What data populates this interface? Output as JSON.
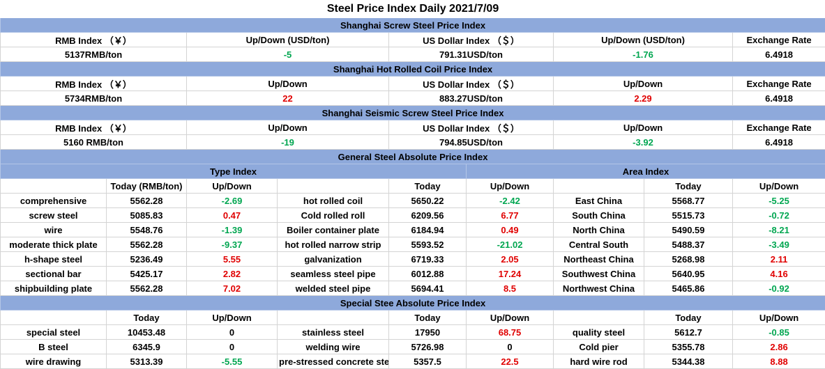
{
  "title": "Steel Price Index Daily  2021/7/09",
  "sections": [
    {
      "title": "Shanghai Screw Steel Price Index",
      "headers": [
        "RMB Index （￥）",
        "Up/Down (USD/ton)",
        "US Dollar Index （＄）",
        "Up/Down (USD/ton)",
        "Exchange Rate"
      ],
      "values": [
        "5137RMB/ton",
        "-5",
        "791.31USD/ton",
        "-1.76",
        "6.4918"
      ]
    },
    {
      "title": "Shanghai Hot Rolled Coil Price Index",
      "headers": [
        "RMB Index （￥）",
        "Up/Down",
        "US Dollar Index （＄）",
        "Up/Down",
        "Exchange Rate"
      ],
      "values": [
        "5734RMB/ton",
        "22",
        "883.27USD/ton",
        "2.29",
        "6.4918"
      ]
    },
    {
      "title": "Shanghai Seismic Screw Steel Price Index",
      "headers": [
        "RMB Index （￥）",
        "Up/Down",
        "US Dollar Index （＄）",
        "Up/Down",
        "Exchange Rate"
      ],
      "values": [
        "5160 RMB/ton",
        "-19",
        "794.85USD/ton",
        "-3.92",
        "6.4918"
      ]
    }
  ],
  "general": {
    "title": "General Steel Absolute Price Index",
    "type_index": "Type Index",
    "area_index": "Area Index",
    "headers": [
      null,
      "Today (RMB/ton)",
      "Up/Down",
      null,
      "Today",
      "Up/Down",
      null,
      "Today",
      "Up/Down"
    ],
    "rows": [
      [
        "comprehensive",
        "5562.28",
        "-2.69",
        "hot rolled coil",
        "5650.22",
        "-2.42",
        "East China",
        "5568.77",
        "-5.25"
      ],
      [
        "screw steel",
        "5085.83",
        "0.47",
        "Cold rolled roll",
        "6209.56",
        "6.77",
        "South China",
        "5515.73",
        "-0.72"
      ],
      [
        "wire",
        "5548.76",
        "-1.39",
        "Boiler container plate",
        "6184.94",
        "0.49",
        "North China",
        "5490.59",
        "-8.21"
      ],
      [
        "moderate thick plate",
        "5562.28",
        "-9.37",
        "hot rolled narrow strip",
        "5593.52",
        "-21.02",
        "Central South",
        "5488.37",
        "-3.49"
      ],
      [
        "h-shape steel",
        "5236.49",
        "5.55",
        "galvanization",
        "6719.33",
        "2.05",
        "Northeast China",
        "5268.98",
        "2.11"
      ],
      [
        "sectional bar",
        "5425.17",
        "2.82",
        "seamless steel pipe",
        "6012.88",
        "17.24",
        "Southwest China",
        "5640.95",
        "4.16"
      ],
      [
        "shipbuilding plate",
        "5562.28",
        "7.02",
        "welded steel pipe",
        "5694.41",
        "8.5",
        "Northwest China",
        "5465.86",
        "-0.92"
      ]
    ]
  },
  "special": {
    "title": "Special Stee Absolute Price Index",
    "headers": [
      null,
      "Today",
      "Up/Down",
      null,
      "Today",
      "Up/Down",
      null,
      "Today",
      "Up/Down"
    ],
    "rows": [
      [
        "special steel",
        "10453.48",
        "0",
        "stainless steel",
        "17950",
        "68.75",
        "quality steel",
        "5612.7",
        "-0.85"
      ],
      [
        "B steel",
        "6345.9",
        "0",
        "welding wire",
        "5726.98",
        "0",
        "Cold pier",
        "5355.78",
        "2.86"
      ],
      [
        "wire drawing",
        "5313.39",
        "-5.55",
        "pre-stressed concrete steel",
        "5357.5",
        "22.5",
        "hard wire rod",
        "5344.38",
        "8.88"
      ]
    ]
  }
}
